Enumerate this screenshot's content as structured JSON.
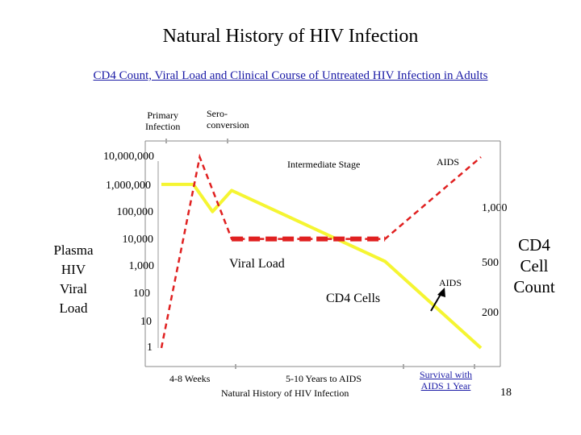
{
  "title": "Natural History of HIV Infection",
  "subtitle": "CD4 Count, Viral Load and Clinical Course of Untreated HIV Infection in Adults",
  "annotations": {
    "primary_infection": [
      "Primary",
      "Infection"
    ],
    "seroconversion": [
      "Sero-",
      "conversion"
    ],
    "intermediate_stage": "Intermediate Stage",
    "aids_top": "AIDS",
    "aids_arrow": "AIDS",
    "viral_load": "Viral Load",
    "cd4_cells": "CD4 Cells"
  },
  "left_axis": {
    "label": [
      "Plasma",
      "HIV",
      "Viral",
      "Load"
    ],
    "ticks": [
      "10,000,000",
      "1,000,000",
      "100,000",
      "10,000",
      "1,000",
      "100",
      "10",
      "1"
    ]
  },
  "right_axis": {
    "label": [
      "CD4",
      "Cell",
      "Count"
    ],
    "ticks": [
      "1,000",
      "500",
      "200"
    ]
  },
  "x_labels": {
    "early": "4-8 Weeks",
    "mid": "5-10 Years to AIDS",
    "mid_sub": "Natural History of HIV Infection",
    "late": [
      "Survival with",
      "AIDS 1 Year"
    ]
  },
  "slide_number": "18",
  "colors": {
    "cd4_line": "#f5f532",
    "viral_line": "#e02020",
    "link": "#1a1aa6"
  },
  "chart_data": {
    "type": "line",
    "title": "Natural History of HIV Infection",
    "subtitle": "CD4 Count, Viral Load and Clinical Course of Untreated HIV Infection in Adults",
    "x_stages": [
      "4-8 Weeks",
      "5-10 Years to AIDS",
      "Survival with AIDS 1 Year"
    ],
    "left_axis_scale": "log",
    "left_axis_range": [
      1,
      10000000
    ],
    "right_axis_ticks": [
      1000,
      500,
      200
    ],
    "series": [
      {
        "name": "Viral Load",
        "axis": "left",
        "style": "dashed",
        "points": [
          [
            0,
            1
          ],
          [
            0.12,
            10000000
          ],
          [
            0.22,
            10000
          ],
          [
            0.7,
            10000
          ],
          [
            1.0,
            10000000
          ]
        ]
      },
      {
        "name": "CD4 Cells",
        "axis": "left-scale-position",
        "style": "solid",
        "points": [
          [
            0,
            1000000
          ],
          [
            0.1,
            1000000
          ],
          [
            0.16,
            100000
          ],
          [
            0.22,
            600000
          ],
          [
            0.7,
            1500
          ],
          [
            1.0,
            1
          ]
        ]
      }
    ]
  }
}
